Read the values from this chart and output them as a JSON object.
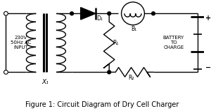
{
  "title": "Figure 1: Circuit Diagram of Dry Cell Charger",
  "title_fontsize": 7,
  "bg_color": "#ffffff",
  "line_color": "#000000",
  "fig_width": 3.0,
  "fig_height": 1.59,
  "dpi": 100,
  "input_label": "230V\n50Hz AC\nINPUT",
  "x1_label": "X₁",
  "d1_label": "D₁",
  "b1_label": "B₁",
  "r1_label": "R₁",
  "r2_label": "R₂",
  "battery_label": "BATTERY\nTO\nCHARGE"
}
